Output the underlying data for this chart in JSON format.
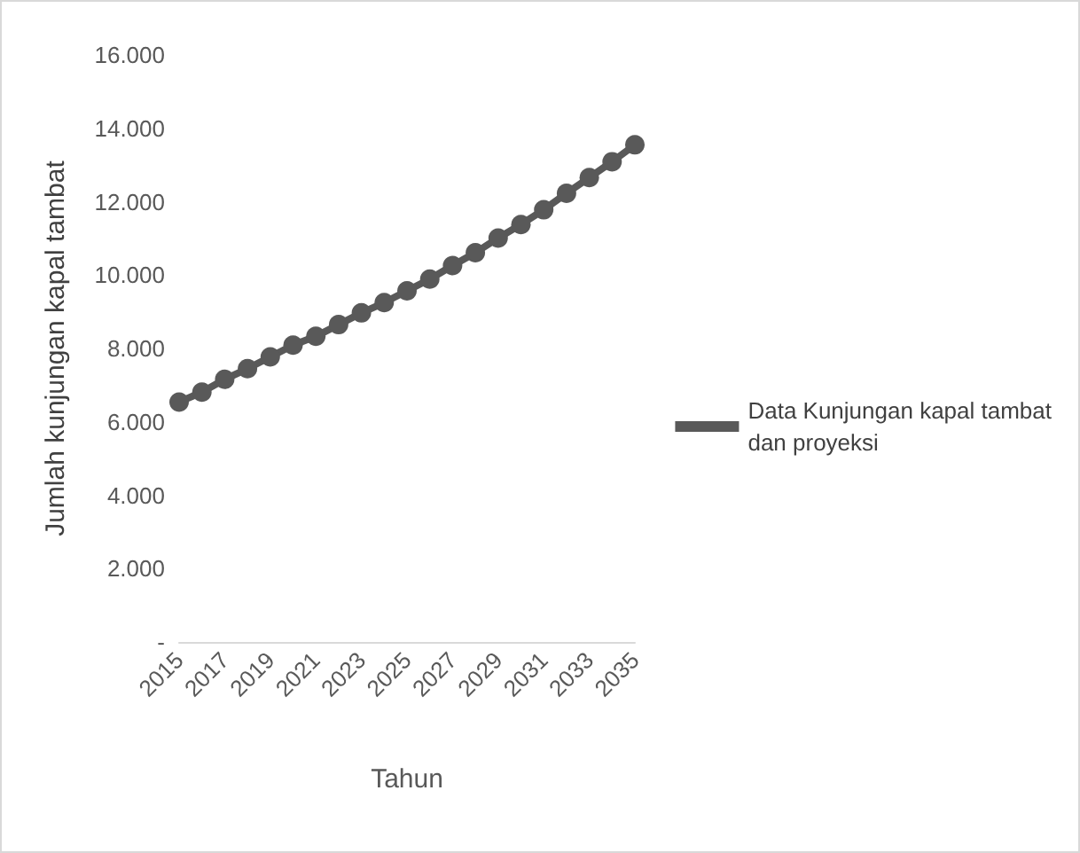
{
  "chart_data": {
    "type": "line",
    "xlabel": "Tahun",
    "ylabel": "Jumlah kunjungan kapal tambat",
    "categories": [
      "2015",
      null,
      "2017",
      null,
      "2019",
      null,
      "2021",
      null,
      "2023",
      null,
      "2025",
      null,
      "2027",
      null,
      "2029",
      null,
      "2031",
      null,
      "2033",
      null,
      "2035"
    ],
    "series": [
      {
        "name": "Data Kunjungan kapal tambat dan proyeksi",
        "color": "#595959",
        "values": [
          6540,
          6810,
          7160,
          7450,
          7770,
          8090,
          8330,
          8650,
          8970,
          9250,
          9570,
          9890,
          10260,
          10610,
          11010,
          11380,
          11780,
          12230,
          12660,
          13090,
          13550
        ]
      }
    ],
    "ylim": [
      0,
      16000
    ],
    "yticks": [
      {
        "value": 0,
        "label": "-"
      },
      {
        "value": 2000,
        "label": "2.000"
      },
      {
        "value": 4000,
        "label": "4.000"
      },
      {
        "value": 6000,
        "label": "6.000"
      },
      {
        "value": 8000,
        "label": "8.000"
      },
      {
        "value": 10000,
        "label": "10.000"
      },
      {
        "value": 12000,
        "label": "12.000"
      },
      {
        "value": 14000,
        "label": "14.000"
      },
      {
        "value": 16000,
        "label": "16.000"
      }
    ],
    "grid": false,
    "legend": "right",
    "marker": "circle",
    "line_style": "solid"
  }
}
